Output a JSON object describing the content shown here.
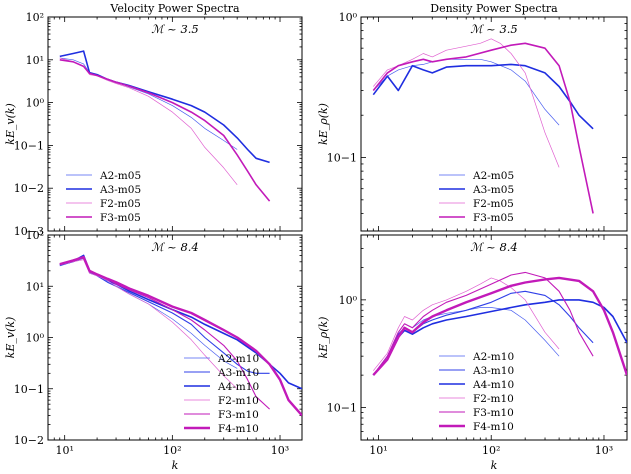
{
  "chart_data": [
    {
      "type": "line",
      "column_title": "Velocity Power Spectra",
      "title": "ℳ ~ 3.5",
      "xlabel": "",
      "ylabel": "kE_v(k)",
      "xscale": "log",
      "yscale": "log",
      "xlim": [
        7,
        1600
      ],
      "ylim": [
        0.001,
        100
      ],
      "yticks": [
        {
          "v": 0.001,
          "label": "10−3"
        },
        {
          "v": 0.01,
          "label": "10−2"
        },
        {
          "v": 0.1,
          "label": "10−1"
        },
        {
          "v": 1,
          "label": "10⁰"
        },
        {
          "v": 10,
          "label": "10¹"
        },
        {
          "v": 100,
          "label": "10²"
        }
      ],
      "xticks": [],
      "legend_loc": "lower-left",
      "series": [
        {
          "name": "A2-m05",
          "color": "#4a5ff0",
          "width": 0.7,
          "x": [
            9,
            12,
            15,
            17,
            20,
            25,
            30,
            40,
            60,
            100,
            150,
            200,
            300,
            400
          ],
          "y": [
            11,
            10,
            8,
            5,
            4.5,
            3.5,
            3,
            2.3,
            1.6,
            0.85,
            0.45,
            0.25,
            0.13,
            0.08
          ]
        },
        {
          "name": "A3-m05",
          "color": "#1f2ee0",
          "width": 1.6,
          "x": [
            9,
            12,
            15,
            17,
            20,
            25,
            30,
            40,
            60,
            100,
            150,
            200,
            300,
            400,
            500,
            600,
            800
          ],
          "y": [
            12,
            14,
            16,
            5,
            4.5,
            3.5,
            3,
            2.5,
            1.8,
            1.2,
            0.85,
            0.6,
            0.3,
            0.15,
            0.08,
            0.05,
            0.04
          ]
        },
        {
          "name": "F2-m05",
          "color": "#e060d0",
          "width": 0.7,
          "x": [
            9,
            12,
            15,
            17,
            20,
            25,
            30,
            40,
            60,
            100,
            150,
            200,
            300,
            400
          ],
          "y": [
            11,
            9,
            7,
            4.5,
            4.2,
            3.3,
            2.8,
            2.2,
            1.4,
            0.6,
            0.25,
            0.09,
            0.03,
            0.012
          ]
        },
        {
          "name": "F3-m05",
          "color": "#c21ab9",
          "width": 1.6,
          "x": [
            9,
            12,
            15,
            17,
            20,
            25,
            30,
            40,
            60,
            100,
            150,
            200,
            300,
            400,
            500,
            600,
            800
          ],
          "y": [
            10,
            9,
            7,
            4.8,
            4.3,
            3.5,
            3,
            2.4,
            1.7,
            1,
            0.6,
            0.38,
            0.17,
            0.06,
            0.025,
            0.012,
            0.005
          ]
        }
      ]
    },
    {
      "type": "line",
      "column_title": "Density Power Spectra",
      "title": "ℳ ~ 3.5",
      "xlabel": "",
      "ylabel": "kE_ρ(k)",
      "xscale": "log",
      "yscale": "log",
      "xlim": [
        7,
        1600
      ],
      "ylim": [
        0.03,
        1
      ],
      "yticks": [
        {
          "v": 0.1,
          "label": "10−1"
        },
        {
          "v": 1,
          "label": "10⁰"
        }
      ],
      "xticks": [],
      "legend_loc": "lower-center",
      "series": [
        {
          "name": "A2-m05",
          "color": "#4a5ff0",
          "width": 0.7,
          "x": [
            9,
            12,
            15,
            20,
            25,
            30,
            40,
            60,
            80,
            100,
            150,
            200,
            300,
            400
          ],
          "y": [
            0.3,
            0.38,
            0.42,
            0.45,
            0.46,
            0.48,
            0.5,
            0.5,
            0.5,
            0.48,
            0.42,
            0.35,
            0.22,
            0.17
          ]
        },
        {
          "name": "A3-m05",
          "color": "#1f2ee0",
          "width": 1.6,
          "x": [
            9,
            12,
            15,
            20,
            25,
            30,
            40,
            60,
            100,
            150,
            200,
            300,
            400,
            500,
            600,
            800
          ],
          "y": [
            0.28,
            0.38,
            0.3,
            0.45,
            0.42,
            0.4,
            0.44,
            0.45,
            0.45,
            0.46,
            0.45,
            0.4,
            0.32,
            0.25,
            0.2,
            0.16
          ]
        },
        {
          "name": "F2-m05",
          "color": "#e060d0",
          "width": 0.7,
          "x": [
            9,
            12,
            15,
            20,
            25,
            30,
            40,
            60,
            80,
            100,
            120,
            150,
            200,
            300,
            400
          ],
          "y": [
            0.32,
            0.42,
            0.45,
            0.5,
            0.55,
            0.52,
            0.58,
            0.62,
            0.65,
            0.7,
            0.65,
            0.55,
            0.4,
            0.15,
            0.085
          ]
        },
        {
          "name": "F3-m05",
          "color": "#c21ab9",
          "width": 1.6,
          "x": [
            9,
            12,
            15,
            20,
            25,
            30,
            40,
            60,
            100,
            150,
            200,
            300,
            400,
            500,
            600,
            800
          ],
          "y": [
            0.3,
            0.4,
            0.45,
            0.48,
            0.5,
            0.48,
            0.5,
            0.52,
            0.58,
            0.63,
            0.65,
            0.6,
            0.45,
            0.25,
            0.12,
            0.04
          ]
        }
      ]
    },
    {
      "type": "line",
      "title": "ℳ ~ 8.4",
      "xlabel": "k",
      "ylabel": "kE_v(k)",
      "xscale": "log",
      "yscale": "log",
      "xlim": [
        7,
        1600
      ],
      "ylim": [
        0.01,
        100
      ],
      "yticks": [
        {
          "v": 0.01,
          "label": "10−2"
        },
        {
          "v": 0.1,
          "label": "10−1"
        },
        {
          "v": 1,
          "label": "10⁰"
        },
        {
          "v": 10,
          "label": "10¹"
        },
        {
          "v": 100,
          "label": "10²"
        }
      ],
      "xticks": [
        {
          "v": 10,
          "label": "10¹"
        },
        {
          "v": 100,
          "label": "10²"
        },
        {
          "v": 1000,
          "label": "10³"
        }
      ],
      "legend_loc": "lower-right",
      "series": [
        {
          "name": "A2-m10",
          "color": "#4a5ff0",
          "width": 0.7,
          "x": [
            9,
            12,
            15,
            17,
            20,
            25,
            30,
            40,
            60,
            100,
            150,
            200,
            300,
            400
          ],
          "y": [
            25,
            30,
            35,
            18,
            16,
            12,
            10,
            7,
            4.5,
            2.3,
            1.2,
            0.7,
            0.35,
            0.25
          ]
        },
        {
          "name": "A3-m10",
          "color": "#3040e8",
          "width": 1.1,
          "x": [
            9,
            12,
            15,
            17,
            20,
            25,
            30,
            40,
            60,
            100,
            150,
            200,
            300,
            400,
            500,
            600,
            800
          ],
          "y": [
            26,
            30,
            38,
            19,
            16,
            12,
            10,
            7.5,
            5,
            3,
            1.8,
            1,
            0.5,
            0.3,
            0.22,
            0.2,
            0.2
          ]
        },
        {
          "name": "A4-m10",
          "color": "#1f2ee0",
          "width": 1.6,
          "x": [
            9,
            12,
            15,
            17,
            20,
            25,
            30,
            40,
            60,
            100,
            150,
            200,
            300,
            400,
            600,
            800,
            1000,
            1200,
            1600
          ],
          "y": [
            26,
            31,
            40,
            20,
            17,
            13,
            11,
            8,
            5.5,
            3.5,
            2.5,
            1.8,
            1.2,
            0.9,
            0.5,
            0.3,
            0.2,
            0.13,
            0.1
          ]
        },
        {
          "name": "F2-m10",
          "color": "#e060d0",
          "width": 0.7,
          "x": [
            9,
            12,
            15,
            17,
            20,
            25,
            30,
            40,
            60,
            100,
            150,
            200,
            300,
            400
          ],
          "y": [
            26,
            30,
            33,
            18,
            16,
            13,
            10,
            7,
            4.5,
            2,
            0.9,
            0.45,
            0.18,
            0.1
          ]
        },
        {
          "name": "F3-m10",
          "color": "#c21ab9",
          "width": 1.1,
          "x": [
            9,
            12,
            15,
            17,
            20,
            25,
            30,
            40,
            60,
            100,
            150,
            200,
            300,
            400,
            500,
            600,
            800
          ],
          "y": [
            27,
            31,
            36,
            19,
            17,
            14,
            11,
            8.5,
            6,
            3.5,
            2.2,
            1.4,
            0.7,
            0.35,
            0.15,
            0.07,
            0.04
          ]
        },
        {
          "name": "F4-m10",
          "color": "#c21ab9",
          "width": 2.4,
          "x": [
            9,
            12,
            15,
            17,
            20,
            25,
            30,
            40,
            60,
            100,
            150,
            200,
            300,
            400,
            600,
            800,
            1000,
            1200,
            1600
          ],
          "y": [
            27,
            32,
            37,
            20,
            17,
            14,
            12,
            9,
            6.5,
            4,
            3,
            2.2,
            1.4,
            1,
            0.55,
            0.3,
            0.15,
            0.06,
            0.03
          ]
        }
      ]
    },
    {
      "type": "line",
      "title": "ℳ ~ 8.4",
      "xlabel": "k",
      "ylabel": "kE_ρ(k)",
      "xscale": "log",
      "yscale": "log",
      "xlim": [
        7,
        1600
      ],
      "ylim": [
        0.05,
        4
      ],
      "yticks": [
        {
          "v": 0.1,
          "label": "10−1"
        },
        {
          "v": 1,
          "label": "10⁰"
        }
      ],
      "xticks": [
        {
          "v": 10,
          "label": "10¹"
        },
        {
          "v": 100,
          "label": "10²"
        },
        {
          "v": 1000,
          "label": "10³"
        }
      ],
      "legend_loc": "lower-center",
      "series": [
        {
          "name": "A2-m10",
          "color": "#4a5ff0",
          "width": 0.7,
          "x": [
            9,
            12,
            15,
            17,
            20,
            25,
            30,
            40,
            60,
            80,
            100,
            150,
            200,
            300,
            400
          ],
          "y": [
            0.2,
            0.3,
            0.5,
            0.6,
            0.55,
            0.65,
            0.7,
            0.75,
            0.8,
            0.85,
            0.85,
            0.8,
            0.65,
            0.42,
            0.3
          ]
        },
        {
          "name": "A3-m10",
          "color": "#3040e8",
          "width": 1.1,
          "x": [
            9,
            12,
            15,
            17,
            20,
            25,
            30,
            40,
            60,
            100,
            150,
            200,
            300,
            400,
            500,
            600,
            800
          ],
          "y": [
            0.2,
            0.3,
            0.48,
            0.55,
            0.5,
            0.6,
            0.65,
            0.72,
            0.8,
            0.95,
            1.15,
            1.2,
            1.1,
            0.9,
            0.7,
            0.55,
            0.4
          ]
        },
        {
          "name": "A4-m10",
          "color": "#1f2ee0",
          "width": 1.6,
          "x": [
            9,
            12,
            15,
            17,
            20,
            25,
            30,
            40,
            60,
            100,
            150,
            200,
            300,
            400,
            600,
            800,
            1000,
            1200,
            1600
          ],
          "y": [
            0.2,
            0.28,
            0.45,
            0.52,
            0.48,
            0.55,
            0.6,
            0.65,
            0.7,
            0.78,
            0.85,
            0.9,
            0.95,
            1,
            1,
            0.95,
            0.85,
            0.7,
            0.4
          ]
        },
        {
          "name": "F2-m10",
          "color": "#e060d0",
          "width": 0.7,
          "x": [
            9,
            12,
            15,
            17,
            20,
            25,
            30,
            40,
            60,
            80,
            100,
            120,
            150,
            200,
            300,
            400
          ],
          "y": [
            0.22,
            0.32,
            0.55,
            0.7,
            0.65,
            0.8,
            0.9,
            1,
            1.2,
            1.4,
            1.6,
            1.5,
            1.3,
            1,
            0.5,
            0.35
          ]
        },
        {
          "name": "F3-m10",
          "color": "#c21ab9",
          "width": 1.1,
          "x": [
            9,
            12,
            15,
            17,
            20,
            25,
            30,
            40,
            60,
            100,
            150,
            200,
            300,
            400,
            500,
            600,
            800
          ],
          "y": [
            0.2,
            0.3,
            0.5,
            0.6,
            0.55,
            0.7,
            0.8,
            0.95,
            1.1,
            1.4,
            1.7,
            1.8,
            1.6,
            1.2,
            0.8,
            0.5,
            0.3
          ]
        },
        {
          "name": "F4-m10",
          "color": "#c21ab9",
          "width": 2.4,
          "x": [
            9,
            12,
            15,
            17,
            20,
            25,
            30,
            40,
            60,
            100,
            150,
            200,
            300,
            400,
            600,
            800,
            1000,
            1200,
            1600
          ],
          "y": [
            0.2,
            0.28,
            0.45,
            0.55,
            0.5,
            0.62,
            0.7,
            0.8,
            0.95,
            1.15,
            1.35,
            1.45,
            1.55,
            1.6,
            1.5,
            1.2,
            0.8,
            0.5,
            0.2
          ]
        }
      ]
    }
  ]
}
